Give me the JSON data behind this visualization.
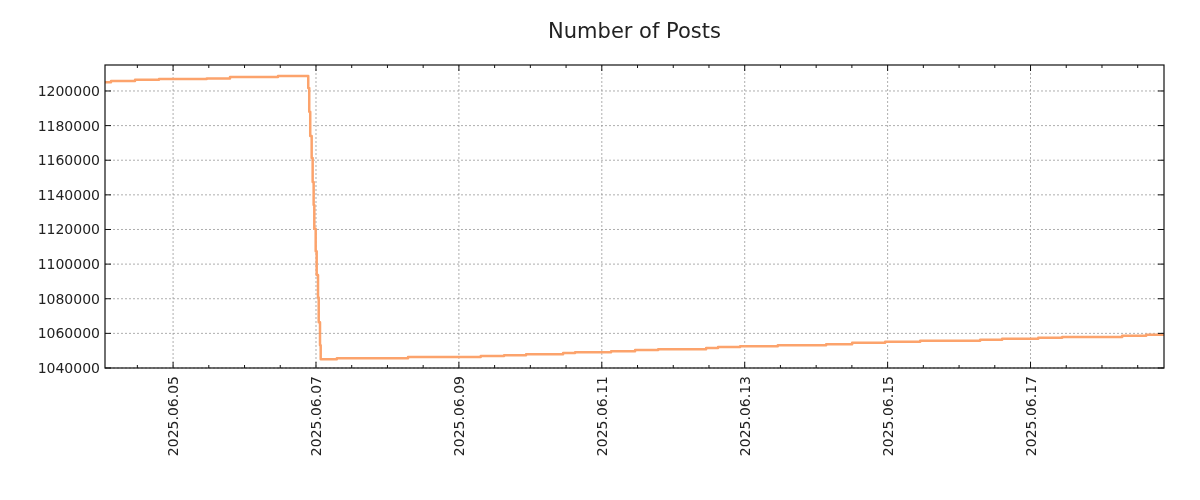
{
  "chart_data": {
    "type": "step",
    "title": "Number of Posts",
    "x": [
      "2025-06-04T01:08",
      "2025-06-04T03:09",
      "2025-06-04T11:13",
      "2025-06-04T19:16",
      "2025-06-05T11:17",
      "2025-06-05T19:07",
      "2025-06-06T11:14",
      "2025-06-06T21:24",
      "2025-06-06T21:44",
      "2025-06-06T22:04",
      "2025-06-06T22:33",
      "2025-06-06T22:53",
      "2025-06-06T23:13",
      "2025-06-06T23:26",
      "2025-06-06T23:54",
      "2025-06-07T00:14",
      "2025-06-07T00:41",
      "2025-06-07T00:55",
      "2025-06-07T01:21",
      "2025-06-07T01:35",
      "2025-06-07T07:00",
      "2025-06-08T06:55",
      "2025-06-09T07:20",
      "2025-06-09T15:10",
      "2025-06-09T22:33",
      "2025-06-10T11:00",
      "2025-06-10T15:01",
      "2025-06-11T03:07",
      "2025-06-11T11:11",
      "2025-06-11T18:55",
      "2025-06-12T11:02",
      "2025-06-12T15:03",
      "2025-06-12T22:27",
      "2025-06-13T11:07",
      "2025-06-14T03:21",
      "2025-06-14T12:05",
      "2025-06-14T23:10",
      "2025-06-15T10:56",
      "2025-06-16T07:05",
      "2025-06-16T14:28",
      "2025-06-17T02:35",
      "2025-06-17T10:38",
      "2025-06-18T06:47",
      "2025-06-18T14:51",
      "2025-06-18T20:50"
    ],
    "series": [
      {
        "color": "#fca36c",
        "values": [
          1205100,
          1205700,
          1206500,
          1206900,
          1207200,
          1208000,
          1208700,
          1201700,
          1188000,
          1174000,
          1161300,
          1147400,
          1134100,
          1120400,
          1107400,
          1093700,
          1080700,
          1066400,
          1053100,
          1045100,
          1045700,
          1046300,
          1046900,
          1047400,
          1048000,
          1048600,
          1049100,
          1049700,
          1050400,
          1050800,
          1051600,
          1052200,
          1052600,
          1053100,
          1053700,
          1054600,
          1055200,
          1055800,
          1056300,
          1056900,
          1057500,
          1057900,
          1058600,
          1059200,
          1059200
        ]
      }
    ],
    "xlim": [
      "2025-06-04T01:08",
      "2025-06-18T20:50"
    ],
    "xticks": [
      {
        "value": "2025-06-04T12:00",
        "label": null
      },
      {
        "value": "2025-06-05T00:00",
        "label": "2025.06.05"
      },
      {
        "value": "2025-06-05T12:00",
        "label": null
      },
      {
        "value": "2025-06-06T00:00",
        "label": null
      },
      {
        "value": "2025-06-06T12:00",
        "label": null
      },
      {
        "value": "2025-06-07T00:00",
        "label": "2025.06.07"
      },
      {
        "value": "2025-06-07T12:00",
        "label": null
      },
      {
        "value": "2025-06-08T00:00",
        "label": null
      },
      {
        "value": "2025-06-08T12:00",
        "label": null
      },
      {
        "value": "2025-06-09T00:00",
        "label": "2025.06.09"
      },
      {
        "value": "2025-06-09T12:00",
        "label": null
      },
      {
        "value": "2025-06-10T00:00",
        "label": null
      },
      {
        "value": "2025-06-10T12:00",
        "label": null
      },
      {
        "value": "2025-06-11T00:00",
        "label": "2025.06.11"
      },
      {
        "value": "2025-06-11T12:00",
        "label": null
      },
      {
        "value": "2025-06-12T00:00",
        "label": null
      },
      {
        "value": "2025-06-12T12:00",
        "label": null
      },
      {
        "value": "2025-06-13T00:00",
        "label": "2025.06.13"
      },
      {
        "value": "2025-06-13T12:00",
        "label": null
      },
      {
        "value": "2025-06-14T00:00",
        "label": null
      },
      {
        "value": "2025-06-14T12:00",
        "label": null
      },
      {
        "value": "2025-06-15T00:00",
        "label": "2025.06.15"
      },
      {
        "value": "2025-06-15T12:00",
        "label": null
      },
      {
        "value": "2025-06-16T00:00",
        "label": null
      },
      {
        "value": "2025-06-16T12:00",
        "label": null
      },
      {
        "value": "2025-06-17T00:00",
        "label": "2025.06.17"
      },
      {
        "value": "2025-06-17T12:00",
        "label": null
      },
      {
        "value": "2025-06-18T00:00",
        "label": null
      },
      {
        "value": "2025-06-18T12:00",
        "label": null
      }
    ],
    "ylim": [
      1040000,
      1215000
    ],
    "yticks": [
      1040000,
      1060000,
      1080000,
      1100000,
      1120000,
      1140000,
      1160000,
      1180000,
      1200000
    ],
    "grid": true
  }
}
